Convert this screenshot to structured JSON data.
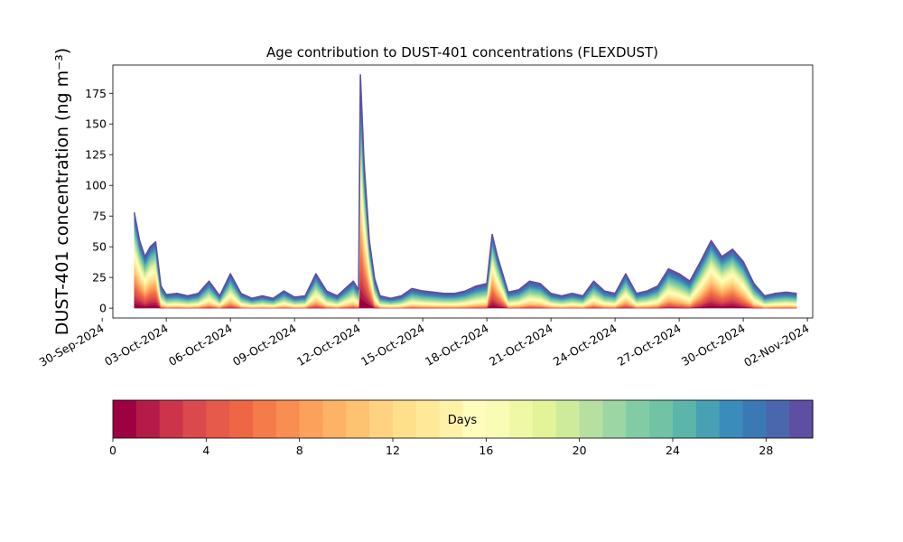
{
  "chart_data": {
    "type": "area",
    "stacked": true,
    "title": "Age contribution to DUST-401 concentrations (FLEXDUST)",
    "xlabel": "",
    "ylabel": "DUST-401 concentration (ng m⁻³)",
    "ylim": [
      -8,
      198
    ],
    "y_ticks": [
      0,
      25,
      50,
      75,
      100,
      125,
      150,
      175
    ],
    "x_range": [
      "2024-09-30T12:00",
      "2024-11-02T06:00"
    ],
    "x_ticks": [
      "30-Sep-2024",
      "03-Oct-2024",
      "06-Oct-2024",
      "09-Oct-2024",
      "12-Oct-2024",
      "15-Oct-2024",
      "18-Oct-2024",
      "21-Oct-2024",
      "24-Oct-2024",
      "27-Oct-2024",
      "30-Oct-2024",
      "02-Nov-2024"
    ],
    "x_tick_dates": [
      "2024-09-30",
      "2024-10-03",
      "2024-10-06",
      "2024-10-09",
      "2024-10-12",
      "2024-10-15",
      "2024-10-18",
      "2024-10-21",
      "2024-10-24",
      "2024-10-27",
      "2024-10-30",
      "2024-11-02"
    ],
    "time": [
      "2024-10-01T12:00",
      "2024-10-01T18:00",
      "2024-10-02T00:00",
      "2024-10-02T06:00",
      "2024-10-02T12:00",
      "2024-10-02T18:00",
      "2024-10-03T00:00",
      "2024-10-03T12:00",
      "2024-10-04T00:00",
      "2024-10-04T12:00",
      "2024-10-05T00:00",
      "2024-10-05T12:00",
      "2024-10-06T00:00",
      "2024-10-06T12:00",
      "2024-10-07T00:00",
      "2024-10-07T12:00",
      "2024-10-08T00:00",
      "2024-10-08T12:00",
      "2024-10-09T00:00",
      "2024-10-09T12:00",
      "2024-10-10T00:00",
      "2024-10-10T12:00",
      "2024-10-11T00:00",
      "2024-10-11T12:00",
      "2024-10-11T18:00",
      "2024-10-12T00:00",
      "2024-10-12T02:00",
      "2024-10-12T06:00",
      "2024-10-12T12:00",
      "2024-10-12T18:00",
      "2024-10-13T00:00",
      "2024-10-13T12:00",
      "2024-10-14T00:00",
      "2024-10-14T12:00",
      "2024-10-15T00:00",
      "2024-10-15T12:00",
      "2024-10-16T00:00",
      "2024-10-16T12:00",
      "2024-10-17T00:00",
      "2024-10-17T12:00",
      "2024-10-18T00:00",
      "2024-10-18T06:00",
      "2024-10-18T12:00",
      "2024-10-19T00:00",
      "2024-10-19T12:00",
      "2024-10-20T00:00",
      "2024-10-20T12:00",
      "2024-10-21T00:00",
      "2024-10-21T12:00",
      "2024-10-22T00:00",
      "2024-10-22T12:00",
      "2024-10-23T00:00",
      "2024-10-23T12:00",
      "2024-10-24T00:00",
      "2024-10-24T12:00",
      "2024-10-25T00:00",
      "2024-10-25T12:00",
      "2024-10-26T00:00",
      "2024-10-26T12:00",
      "2024-10-27T00:00",
      "2024-10-27T12:00",
      "2024-10-28T00:00",
      "2024-10-28T12:00",
      "2024-10-29T00:00",
      "2024-10-29T12:00",
      "2024-10-30T00:00",
      "2024-10-30T12:00",
      "2024-10-31T00:00",
      "2024-10-31T12:00",
      "2024-11-01T00:00",
      "2024-11-01T12:00"
    ],
    "total": [
      78,
      55,
      42,
      50,
      54,
      18,
      11,
      12,
      10,
      12,
      22,
      10,
      28,
      12,
      8,
      10,
      8,
      14,
      9,
      10,
      28,
      14,
      10,
      18,
      22,
      15,
      190,
      120,
      55,
      24,
      10,
      8,
      10,
      16,
      14,
      13,
      12,
      12,
      14,
      18,
      20,
      60,
      42,
      13,
      15,
      22,
      20,
      12,
      10,
      12,
      10,
      22,
      14,
      12,
      28,
      12,
      14,
      18,
      32,
      28,
      22,
      38,
      55,
      42,
      48,
      38,
      20,
      10,
      12,
      13,
      12
    ],
    "days_legend": {
      "label": "Days",
      "range": [
        0,
        30
      ],
      "ticks": [
        0,
        4,
        8,
        12,
        16,
        20,
        24,
        28
      ],
      "colormap": "Spectral",
      "colors": [
        "#9e0142",
        "#b51b47",
        "#cb344b",
        "#da4a4c",
        "#e55a49",
        "#ef6645",
        "#f57b4a",
        "#f98e52",
        "#fba15b",
        "#fdb365",
        "#fdc371",
        "#fed281",
        "#fee08b",
        "#fee999",
        "#fff2a8",
        "#fffdbc",
        "#f9fcb5",
        "#eef8a5",
        "#e2f398",
        "#cdeb9b",
        "#b5e0a0",
        "#9cd6a4",
        "#81cca5",
        "#70c3a5",
        "#5cb5ab",
        "#48a1b3",
        "#3a8cba",
        "#3b79b5",
        "#4a66ad",
        "#5e4fa2"
      ]
    }
  }
}
